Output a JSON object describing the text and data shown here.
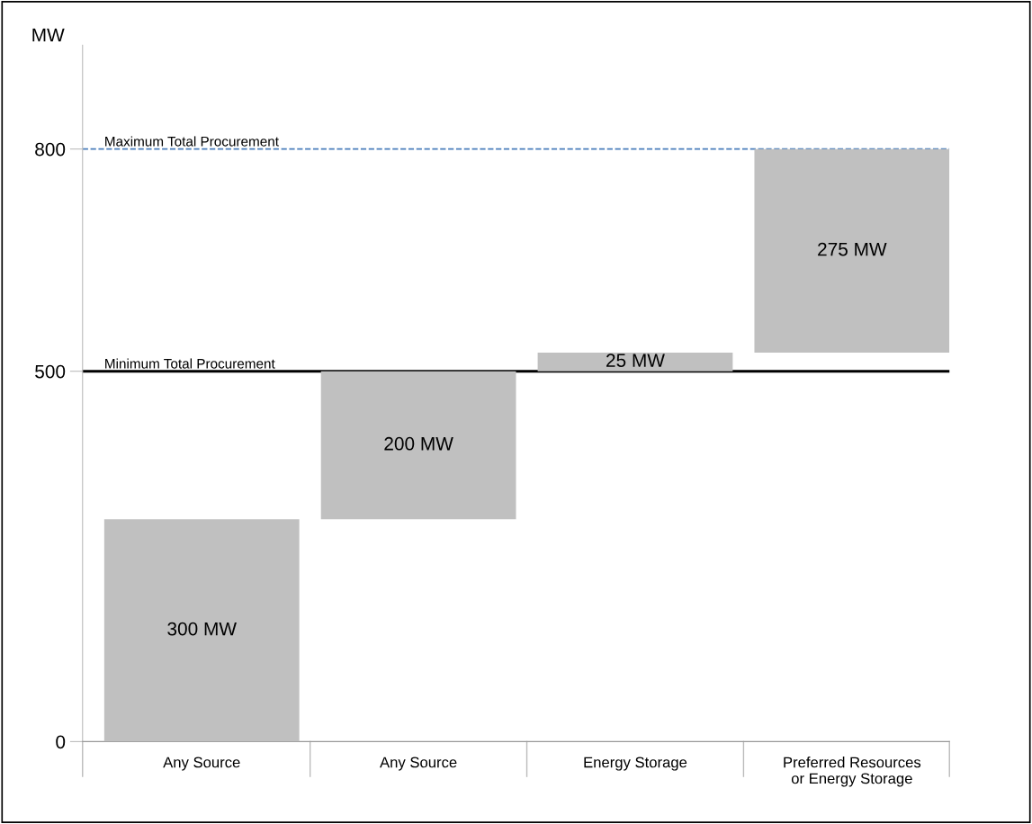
{
  "chart_data": {
    "type": "bar",
    "ylabel": "MW",
    "categories": [
      "Any Source",
      "Any Source",
      "Energy Storage",
      "Preferred Resources\nor Energy Storage"
    ],
    "values": [
      300,
      200,
      25,
      275
    ],
    "base": [
      0,
      300,
      500,
      525
    ],
    "value_labels": [
      "300 MW",
      "200 MW",
      "25 MW",
      "275 MW"
    ],
    "color": "#c0c0c0",
    "ylim": [
      0,
      940
    ],
    "yticks": [
      0,
      500,
      800
    ],
    "ref_lines": [
      {
        "axis": "y",
        "value": 800,
        "label": "Maximum Total Procurement",
        "color": "#4a7ebb",
        "line_style": "dashed"
      },
      {
        "axis": "y",
        "value": 500,
        "label": "Minimum Total Procurement",
        "color": "#000000",
        "line_style": "solid"
      }
    ],
    "grid": false,
    "legend": false
  }
}
